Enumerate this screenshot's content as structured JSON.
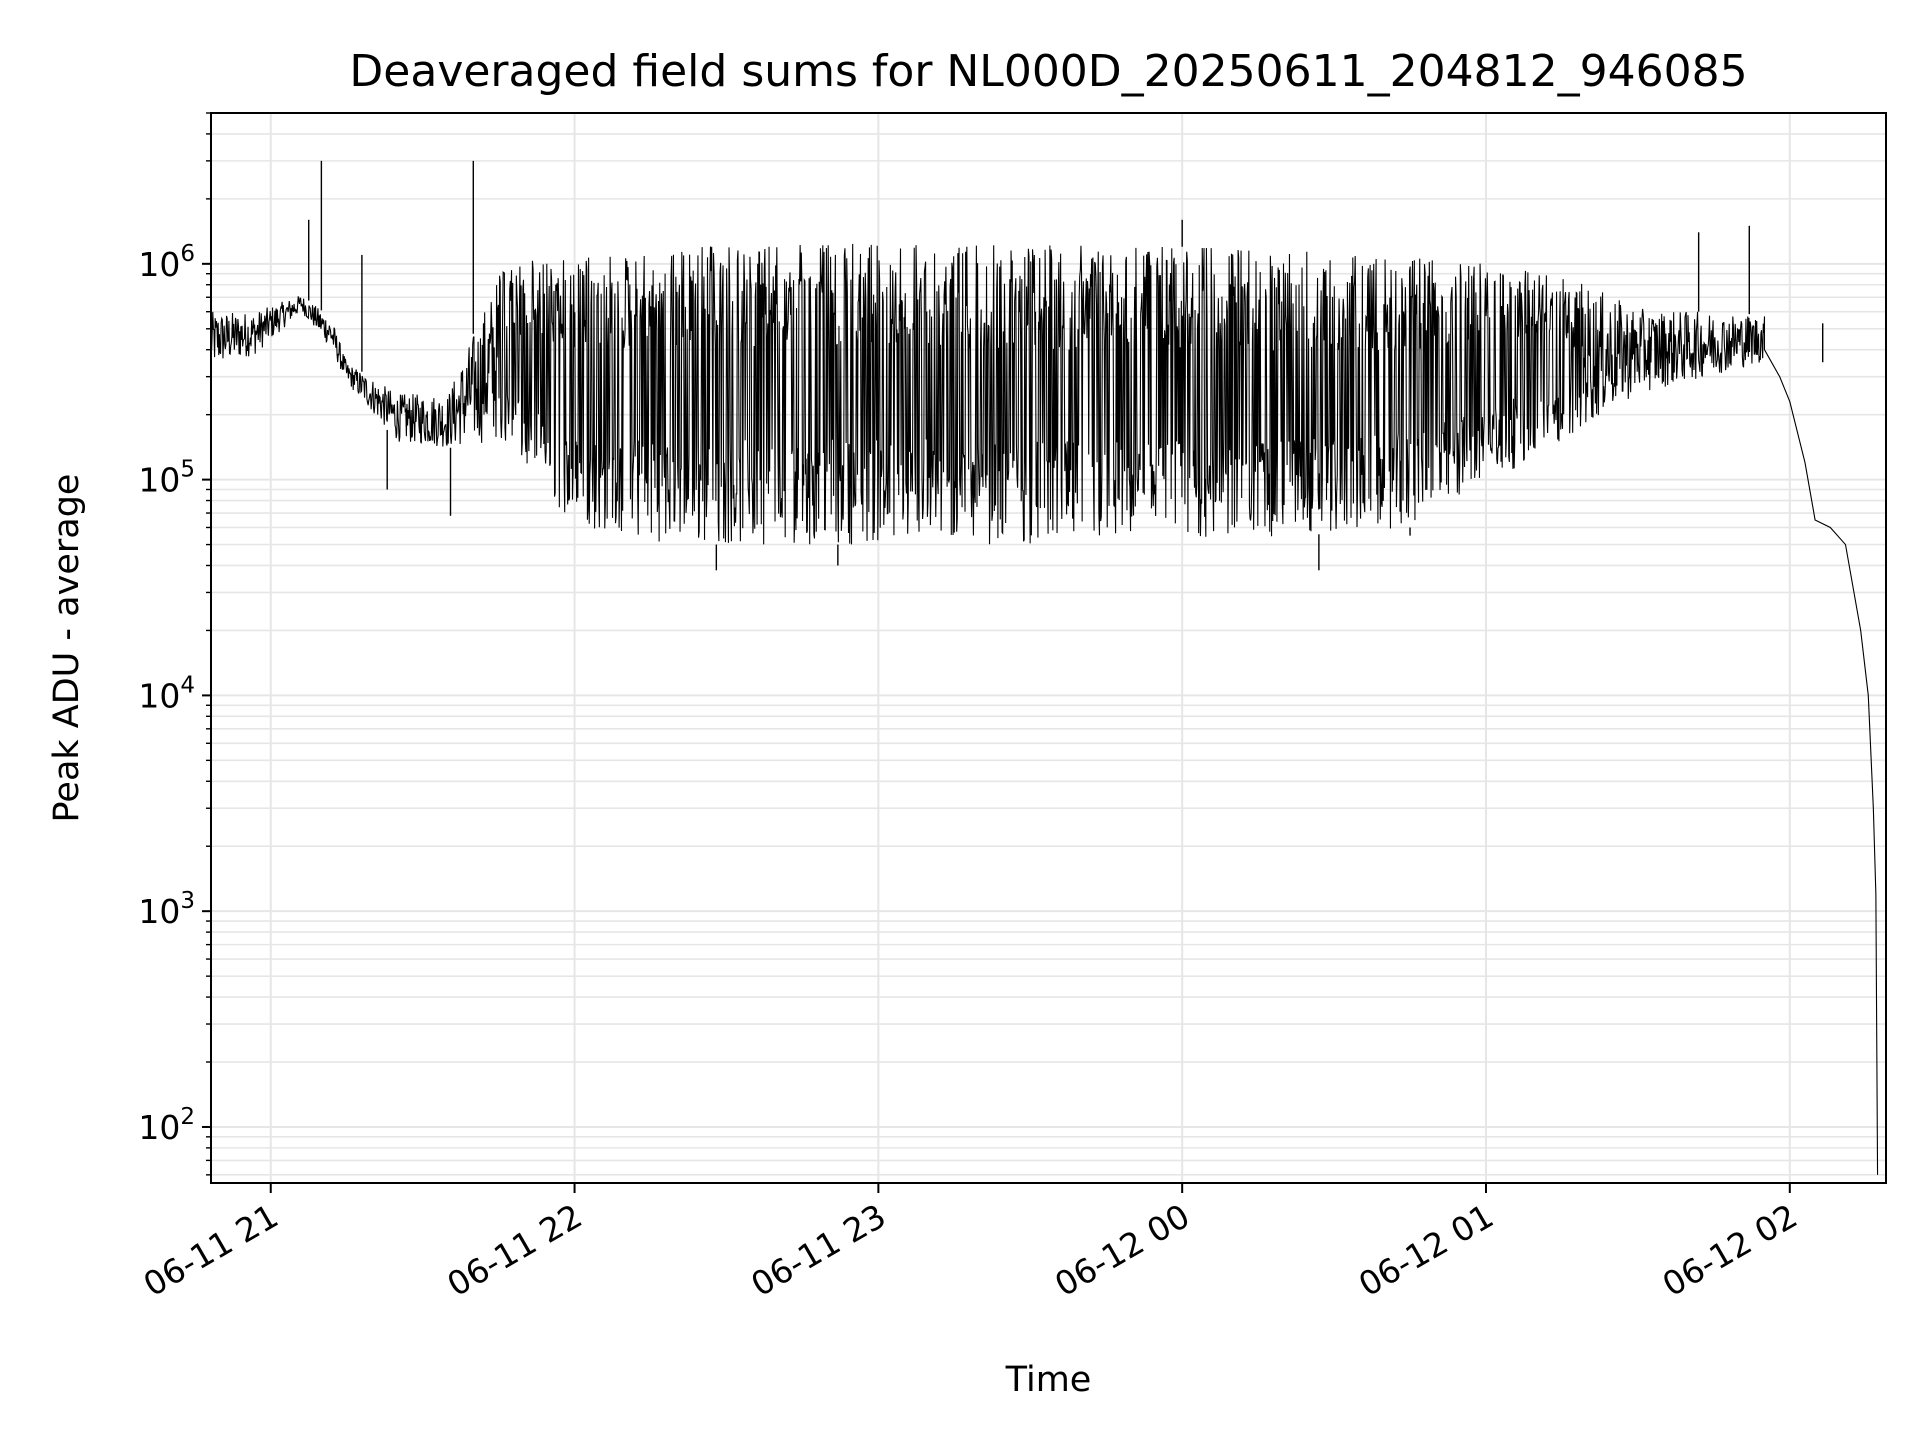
{
  "chart_data": {
    "type": "line",
    "title": "Deaveraged field sums for NL000D_20250611_204812_946085",
    "xlabel": "Time",
    "ylabel": "Peak ADU - average",
    "yscale": "log",
    "ylim": [
      55,
      5000000
    ],
    "xlim": [
      "2025-06-11 20:48:12",
      "2025-06-12 02:19:00"
    ],
    "grid": true,
    "grid_color": "#e6e6e6",
    "line_color": "#000000",
    "x_ticks": [
      {
        "value": "2025-06-11 21:00:00",
        "label": "06-11 21"
      },
      {
        "value": "2025-06-11 22:00:00",
        "label": "06-11 22"
      },
      {
        "value": "2025-06-11 23:00:00",
        "label": "06-11 23"
      },
      {
        "value": "2025-06-12 00:00:00",
        "label": "06-12 00"
      },
      {
        "value": "2025-06-12 01:00:00",
        "label": "06-12 01"
      },
      {
        "value": "2025-06-12 02:00:00",
        "label": "06-12 02"
      }
    ],
    "y_ticks": [
      {
        "value": 100,
        "base": "10",
        "exp": "2"
      },
      {
        "value": 1000,
        "base": "10",
        "exp": "3"
      },
      {
        "value": 10000,
        "base": "10",
        "exp": "4"
      },
      {
        "value": 100000,
        "base": "10",
        "exp": "5"
      },
      {
        "value": 1000000,
        "base": "10",
        "exp": "6"
      }
    ],
    "envelope": [
      {
        "t": "2025-06-11 20:48:12",
        "low": 330000,
        "high": 600000
      },
      {
        "t": "2025-06-11 20:57:00",
        "low": 380000,
        "high": 600000
      },
      {
        "t": "2025-06-11 21:06:00",
        "low": 600000,
        "high": 720000
      },
      {
        "t": "2025-06-11 21:12:00",
        "low": 400000,
        "high": 560000
      },
      {
        "t": "2025-06-11 21:15:00",
        "low": 280000,
        "high": 350000
      },
      {
        "t": "2025-06-11 21:25:00",
        "low": 150000,
        "high": 250000
      },
      {
        "t": "2025-06-11 21:35:00",
        "low": 140000,
        "high": 250000
      },
      {
        "t": "2025-06-11 21:45:00",
        "low": 150000,
        "high": 900000
      },
      {
        "t": "2025-06-11 21:52:00",
        "low": 100000,
        "high": 1050000
      },
      {
        "t": "2025-06-11 22:00:00",
        "low": 60000,
        "high": 1050000
      },
      {
        "t": "2025-06-11 22:20:00",
        "low": 50000,
        "high": 1200000
      },
      {
        "t": "2025-06-11 23:00:00",
        "low": 50000,
        "high": 1250000
      },
      {
        "t": "2025-06-12 00:00:00",
        "low": 50000,
        "high": 1200000
      },
      {
        "t": "2025-06-12 00:45:00",
        "low": 60000,
        "high": 1100000
      },
      {
        "t": "2025-06-12 01:15:00",
        "low": 150000,
        "high": 900000
      },
      {
        "t": "2025-06-12 01:30:00",
        "low": 250000,
        "high": 620000
      },
      {
        "t": "2025-06-12 01:55:00",
        "low": 350000,
        "high": 580000
      }
    ],
    "tail": [
      {
        "t": "2025-06-12 01:55:00",
        "y": 400000
      },
      {
        "t": "2025-06-12 01:58:00",
        "y": 300000
      },
      {
        "t": "2025-06-12 02:00:00",
        "y": 230000
      },
      {
        "t": "2025-06-12 02:03:00",
        "y": 120000
      },
      {
        "t": "2025-06-12 02:05:00",
        "y": 65000
      },
      {
        "t": "2025-06-12 02:08:00",
        "y": 60000
      },
      {
        "t": "2025-06-12 02:11:00",
        "y": 50000
      },
      {
        "t": "2025-06-12 02:14:00",
        "y": 20000
      },
      {
        "t": "2025-06-12 02:15:30",
        "y": 10000
      },
      {
        "t": "2025-06-12 02:16:30",
        "y": 3000
      },
      {
        "t": "2025-06-12 02:17:00",
        "y": 1200
      },
      {
        "t": "2025-06-12 02:17:20",
        "y": 60
      }
    ],
    "spikes": [
      {
        "t": "2025-06-11 21:10:00",
        "y": 3000000
      },
      {
        "t": "2025-06-11 21:07:30",
        "y": 1600000
      },
      {
        "t": "2025-06-11 21:40:00",
        "y": 3000000
      },
      {
        "t": "2025-06-11 21:18:00",
        "y": 1100000
      },
      {
        "t": "2025-06-12 00:00:00",
        "y": 1600000
      },
      {
        "t": "2025-06-12 01:52:00",
        "y": 1500000
      },
      {
        "t": "2025-06-12 01:42:00",
        "y": 1400000
      },
      {
        "t": "2025-06-12 02:06:30",
        "y": 530000
      },
      {
        "t": "2025-06-11 22:28:00",
        "y": 38000
      },
      {
        "t": "2025-06-11 22:52:00",
        "y": 40000
      },
      {
        "t": "2025-06-12 00:27:00",
        "y": 38000
      },
      {
        "t": "2025-06-12 00:45:00",
        "y": 55000
      },
      {
        "t": "2025-06-11 21:23:00",
        "y": 90000
      },
      {
        "t": "2025-06-11 21:35:30",
        "y": 68000
      }
    ]
  }
}
